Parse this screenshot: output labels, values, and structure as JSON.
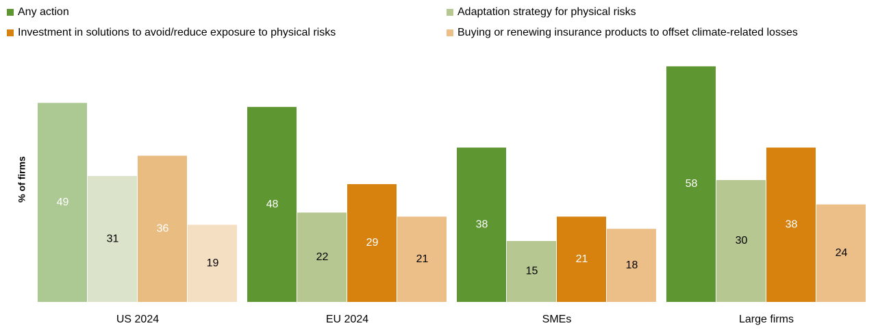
{
  "chart_data": {
    "type": "bar",
    "y_label": "% of firms",
    "categories": [
      "US 2024",
      "EU 2024",
      "SMEs",
      "Large firms"
    ],
    "series": [
      {
        "name": "Any action",
        "color": "#5e9632",
        "colors": [
          "#acc994",
          "#5e9632",
          "#5e9632",
          "#5e9632"
        ],
        "label_colors": [
          "#ffffff",
          "#ffffff",
          "#ffffff",
          "#ffffff"
        ],
        "values": [
          49,
          48,
          38,
          58
        ]
      },
      {
        "name": "Adaptation strategy for physical risks",
        "color": "#b6c791",
        "colors": [
          "#dbe3cb",
          "#b6c791",
          "#b6c791",
          "#b6c791"
        ],
        "label_colors": [
          "#000000",
          "#000000",
          "#000000",
          "#000000"
        ],
        "values": [
          31,
          22,
          15,
          30
        ]
      },
      {
        "name": "Investment in solutions to avoid/reduce exposure to physical risks",
        "color": "#d7820f",
        "colors": [
          "#e9bc82",
          "#d7820f",
          "#d7820f",
          "#d7820f"
        ],
        "label_colors": [
          "#ffffff",
          "#ffffff",
          "#ffffff",
          "#ffffff"
        ],
        "values": [
          36,
          29,
          21,
          38
        ]
      },
      {
        "name": "Buying or renewing insurance products to offset climate-related losses",
        "color": "#ecbf89",
        "colors": [
          "#f5dfc3",
          "#ecbf89",
          "#ecbf89",
          "#ecbf89"
        ],
        "label_colors": [
          "#000000",
          "#000000",
          "#000000",
          "#000000"
        ],
        "values": [
          19,
          21,
          18,
          24
        ]
      }
    ],
    "ylim": [
      0,
      60
    ],
    "legend": "top"
  }
}
